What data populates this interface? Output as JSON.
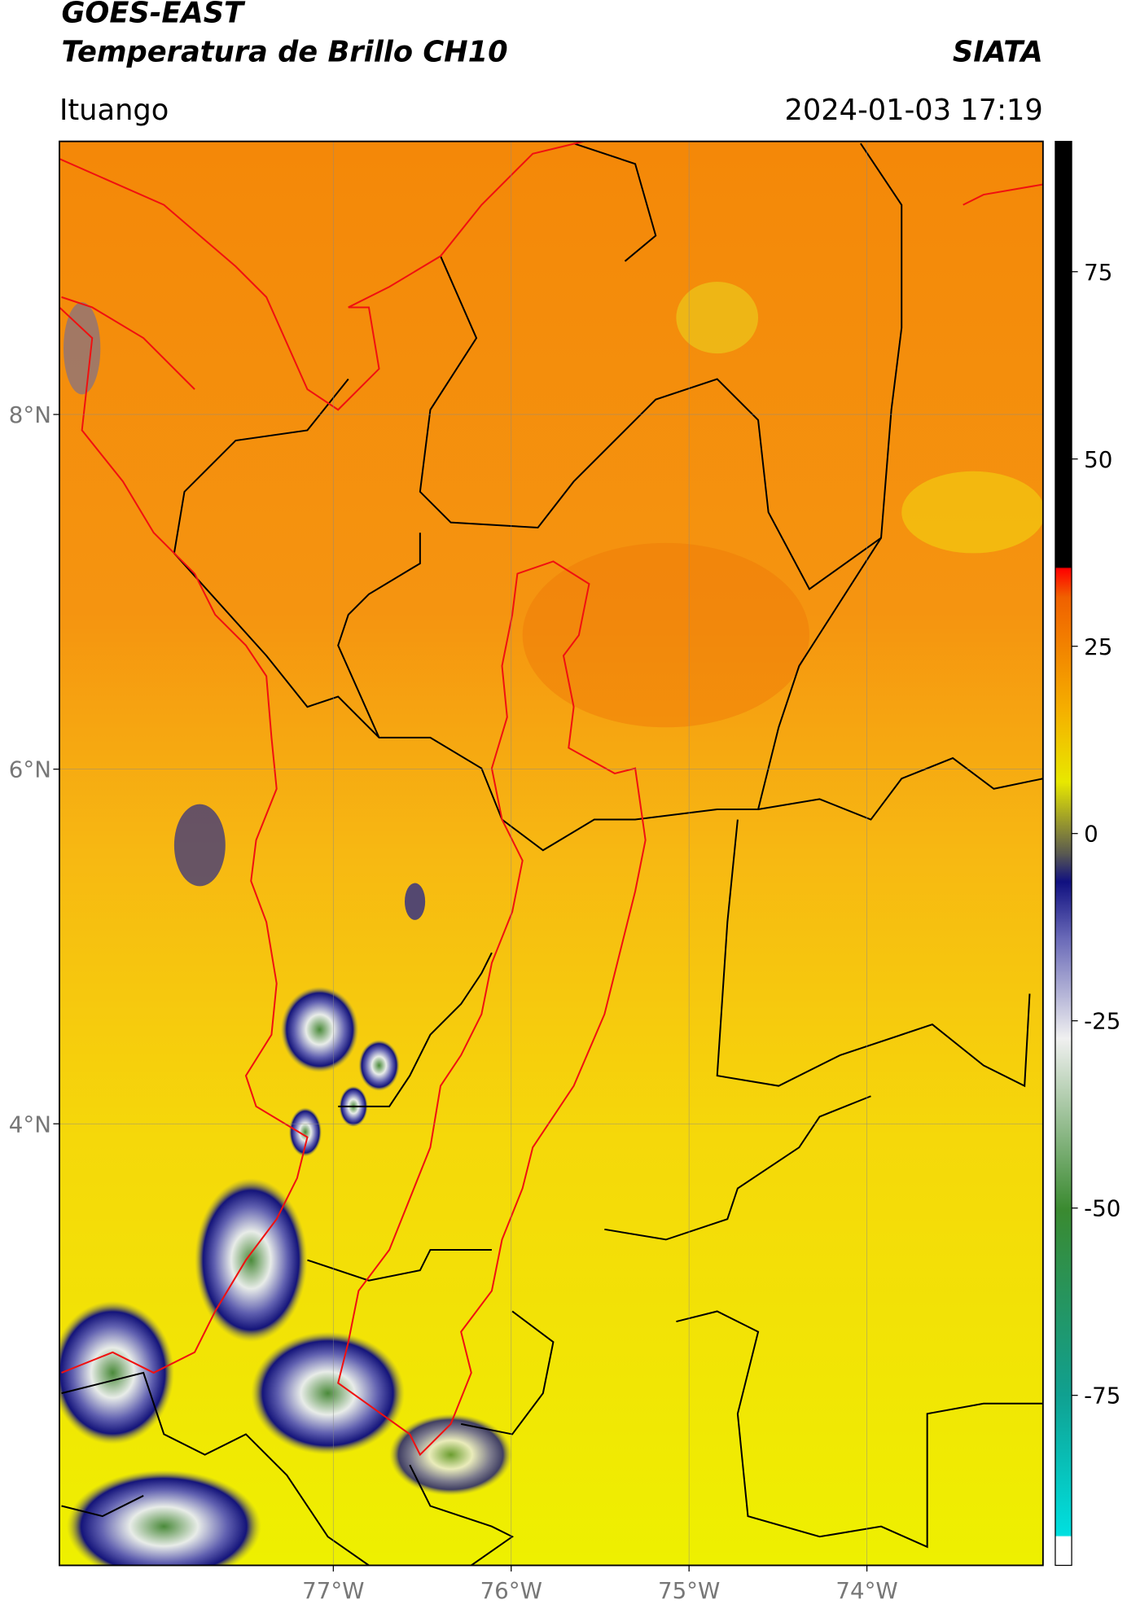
{
  "header": {
    "title": "GOES-EAST",
    "subtitle": "Temperatura de Brillo CH10",
    "brand": "SIATA",
    "location": "Ituango",
    "datetime": "2024-01-03 17:19"
  },
  "map": {
    "lon_range": [
      -78.54,
      -73.01
    ],
    "lat_range": [
      1.51,
      9.54
    ],
    "lon_ticks": [
      {
        "value": -77,
        "label": "77°W"
      },
      {
        "value": -76,
        "label": "76°W"
      },
      {
        "value": -75,
        "label": "75°W"
      },
      {
        "value": -74,
        "label": "74°W"
      }
    ],
    "lat_ticks": [
      {
        "value": 8,
        "label": "8°N"
      },
      {
        "value": 6,
        "label": "6°N"
      },
      {
        "value": 4,
        "label": "4°N"
      }
    ]
  },
  "colorbar": {
    "range": [
      -97.7,
      92.4
    ],
    "ticks": [
      75,
      50,
      25,
      0,
      -25,
      -50,
      -75
    ]
  }
}
